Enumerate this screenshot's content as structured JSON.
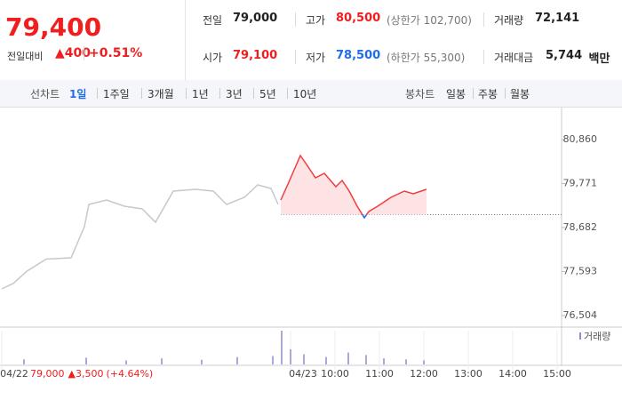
{
  "quote": {
    "price": "79,400",
    "change_label": "전일대비",
    "change": "400",
    "change_pct": "+0.51%"
  },
  "stats": [
    {
      "label": "전일",
      "value": "79,000"
    },
    {
      "label": "고가",
      "value": "80,500",
      "note": "(상한가 102,700)"
    },
    {
      "label": "거래량",
      "value": "72,141"
    },
    {
      "label": "시가",
      "value": "79,100"
    },
    {
      "label": "저가",
      "value": "78,500",
      "note": "(하한가 55,300)"
    },
    {
      "label": "거래대금",
      "value": "5,744",
      "unit": "백만"
    }
  ],
  "tabs": {
    "line_label": "선차트",
    "line": [
      "1일",
      "1주일",
      "3개월",
      "1년",
      "3년",
      "5년",
      "10년"
    ],
    "candle_label": "봉차트",
    "candle": [
      "일봉",
      "주봉",
      "월봉"
    ]
  },
  "chart_data": {
    "type": "line",
    "xlim": [
      2.46,
      15.1
    ],
    "xticks": [
      {
        "value": 2.5,
        "label": "04/22"
      },
      {
        "value": 9,
        "label": "04/23"
      },
      {
        "value": 10,
        "label": "10:00"
      },
      {
        "value": 11,
        "label": "11:00"
      },
      {
        "value": 12,
        "label": "12:00"
      },
      {
        "value": 13,
        "label": "13:00"
      },
      {
        "value": 14,
        "label": "14:00"
      },
      {
        "value": 15,
        "label": "15:00"
      }
    ],
    "ylim": [
      76284,
      81454
    ],
    "yticks": [
      {
        "value": 80860,
        "label": "80,860"
      },
      {
        "value": 79771,
        "label": "79,771"
      },
      {
        "value": 78682,
        "label": "78,682"
      },
      {
        "value": 77593,
        "label": "77,593"
      },
      {
        "value": 76504,
        "label": "76,504"
      }
    ],
    "ref_line": 79000,
    "prev_note": {
      "close": "79,000",
      "change": "3,500",
      "pct": "(+4.64%)"
    },
    "series": [
      {
        "name": "04/22",
        "color": "#c8c8c8",
        "x": [
          2.5,
          2.76,
          3.06,
          3.5,
          4.06,
          4.36,
          4.46,
          4.86,
          5.26,
          5.66,
          5.96,
          6.36,
          6.86,
          7.26,
          7.56,
          7.96,
          8.26,
          8.56,
          8.72
        ],
        "values": [
          77164,
          77300,
          77600,
          77900,
          77934,
          78704,
          79254,
          79364,
          79210,
          79144,
          78814,
          79584,
          79628,
          79584,
          79254,
          79430,
          79738,
          79650,
          79254
        ]
      },
      {
        "name": "04/23",
        "color": "#f03c3c",
        "x": [
          8.78,
          8.96,
          9.22,
          9.36,
          9.56,
          9.76,
          10.02,
          10.16,
          10.32,
          10.5,
          10.66,
          10.76,
          10.96,
          11.26,
          11.56,
          11.76,
          12.06
        ],
        "values": [
          79364,
          79804,
          80464,
          80244,
          79914,
          80024,
          79694,
          79848,
          79584,
          79210,
          78924,
          79078,
          79210,
          79430,
          79584,
          79518,
          79628
        ]
      }
    ],
    "volume": {
      "name": "거래량",
      "color": "#8e8ec8",
      "vlim": [
        0,
        100
      ],
      "x": [
        3.0,
        4.4,
        5.3,
        6.1,
        7.0,
        7.8,
        8.6,
        8.8,
        9.0,
        9.3,
        9.8,
        10.3,
        10.7,
        11.1,
        11.6,
        12.0
      ],
      "values": [
        15,
        20,
        12,
        18,
        14,
        22,
        25,
        100,
        45,
        30,
        22,
        35,
        28,
        18,
        15,
        12
      ]
    }
  }
}
